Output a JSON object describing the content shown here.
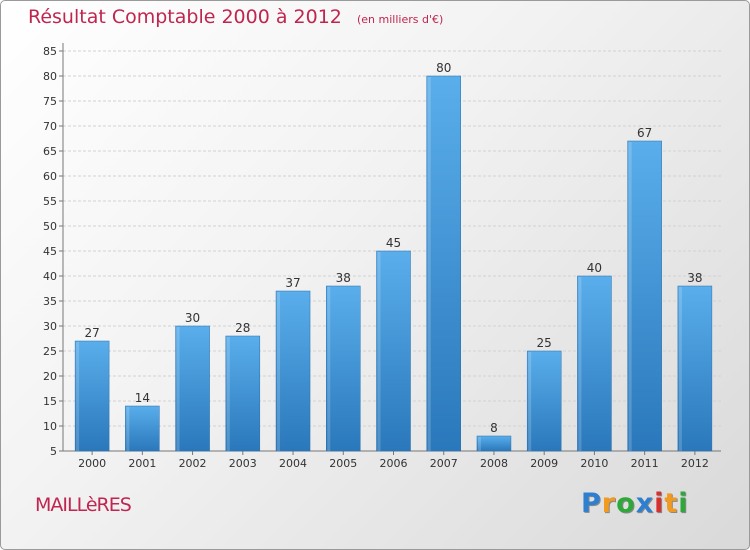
{
  "chart_data": {
    "type": "bar",
    "title": "Résultat Comptable 2000 à 2012",
    "subtitle": "(en milliers d'€)",
    "categories": [
      "2000",
      "2001",
      "2002",
      "2003",
      "2004",
      "2005",
      "2006",
      "2007",
      "2008",
      "2009",
      "2010",
      "2011",
      "2012"
    ],
    "values": [
      27,
      14,
      30,
      28,
      37,
      38,
      45,
      80,
      8,
      25,
      40,
      67,
      38
    ],
    "ylim": [
      5,
      85
    ],
    "yticks": [
      5,
      10,
      15,
      20,
      25,
      30,
      35,
      40,
      45,
      50,
      55,
      60,
      65,
      70,
      75,
      80,
      85
    ],
    "grid": true,
    "xlabel": "",
    "ylabel": "",
    "bar_color": "#3d8fd4"
  },
  "commune": "MAILLèRES",
  "brand": {
    "letters": [
      "P",
      "r",
      "o",
      "x",
      "i",
      "t",
      "i"
    ],
    "colors": [
      "#2f7fd0",
      "#f29a1f",
      "#2fa83a",
      "#2f7fd0",
      "#d6302f",
      "#f29a1f",
      "#2fa83a"
    ]
  }
}
